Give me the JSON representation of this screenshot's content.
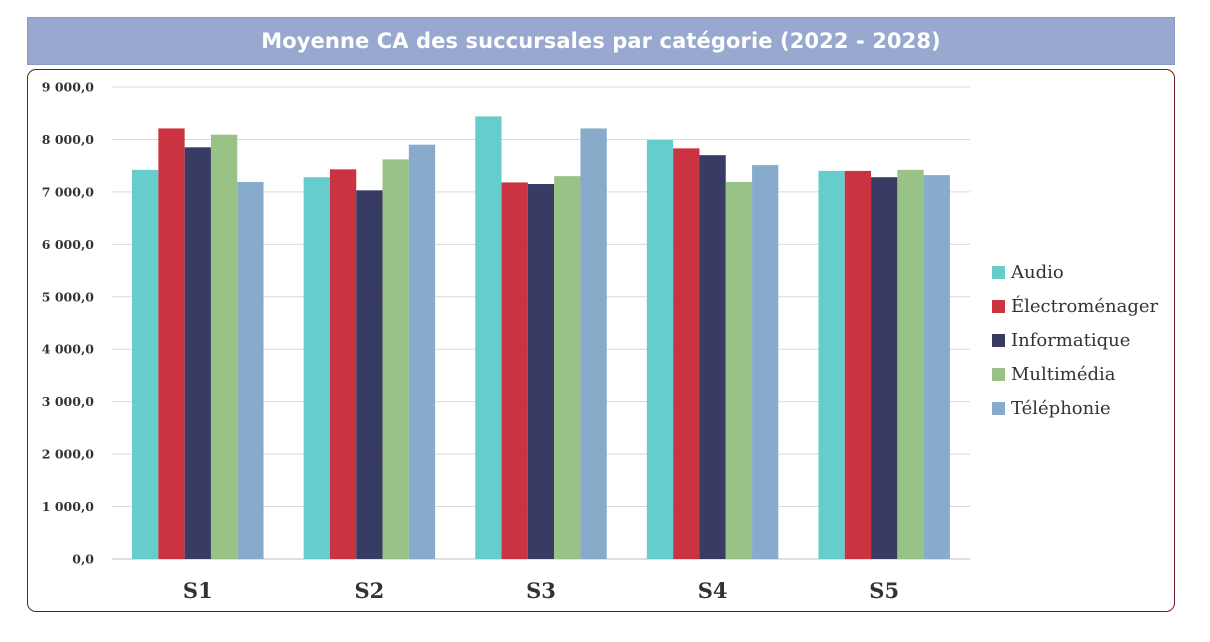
{
  "chart_data": {
    "type": "bar",
    "title": "Moyenne CA des succursales par catégorie (2022 - 2028)",
    "xlabel": "",
    "ylabel": "",
    "categories": [
      "S1",
      "S2",
      "S3",
      "S4",
      "S5"
    ],
    "ylim": [
      0,
      9000
    ],
    "yticks": [
      "0,0",
      "1 000,0",
      "2 000,0",
      "3 000,0",
      "4 000,0",
      "5 000,0",
      "6 000,0",
      "7 000,0",
      "8 000,0",
      "9 000,0"
    ],
    "grid": true,
    "legend_position": "right",
    "series": [
      {
        "name": "Audio",
        "color": "#66cccc",
        "values": [
          7420,
          7280,
          8440,
          7990,
          7400
        ]
      },
      {
        "name": "Électroménager",
        "color": "#cc3340",
        "values": [
          8210,
          7430,
          7180,
          7830,
          7400
        ]
      },
      {
        "name": "Informatique",
        "color": "#383c64",
        "values": [
          7850,
          7030,
          7150,
          7700,
          7280
        ]
      },
      {
        "name": "Multimédia",
        "color": "#99c286",
        "values": [
          8090,
          7620,
          7300,
          7190,
          7420
        ]
      },
      {
        "name": "Téléphonie",
        "color": "#89abcb",
        "values": [
          7190,
          7900,
          8210,
          7510,
          7320
        ]
      }
    ]
  }
}
